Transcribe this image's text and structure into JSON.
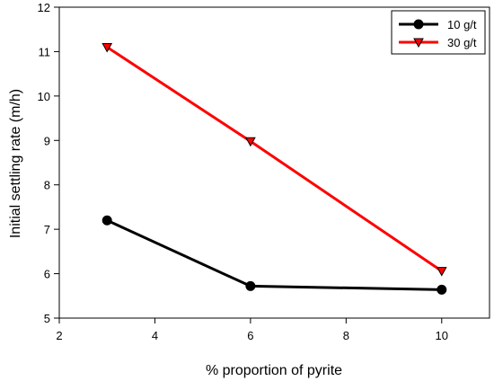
{
  "chart_data": {
    "type": "line",
    "xlabel": "% proportion of pyrite",
    "ylabel": "Initial settling rate (m/h)",
    "xlim": [
      2,
      11
    ],
    "ylim": [
      5,
      12
    ],
    "xticks": [
      2,
      4,
      6,
      8,
      10
    ],
    "yticks": [
      5,
      6,
      7,
      8,
      9,
      10,
      11,
      12
    ],
    "legend_position": "top-right",
    "grid": false,
    "series": [
      {
        "name": "10 g/t",
        "marker": "circle",
        "line_color": "#000000",
        "marker_color": "#000000",
        "x": [
          3,
          6,
          10
        ],
        "y": [
          7.2,
          5.72,
          5.64
        ]
      },
      {
        "name": "30 g/t",
        "marker": "triangle-down",
        "line_color": "#ff0000",
        "marker_color": "#ff0000",
        "x": [
          3,
          6,
          10
        ],
        "y": [
          11.1,
          8.98,
          6.06
        ]
      }
    ]
  }
}
